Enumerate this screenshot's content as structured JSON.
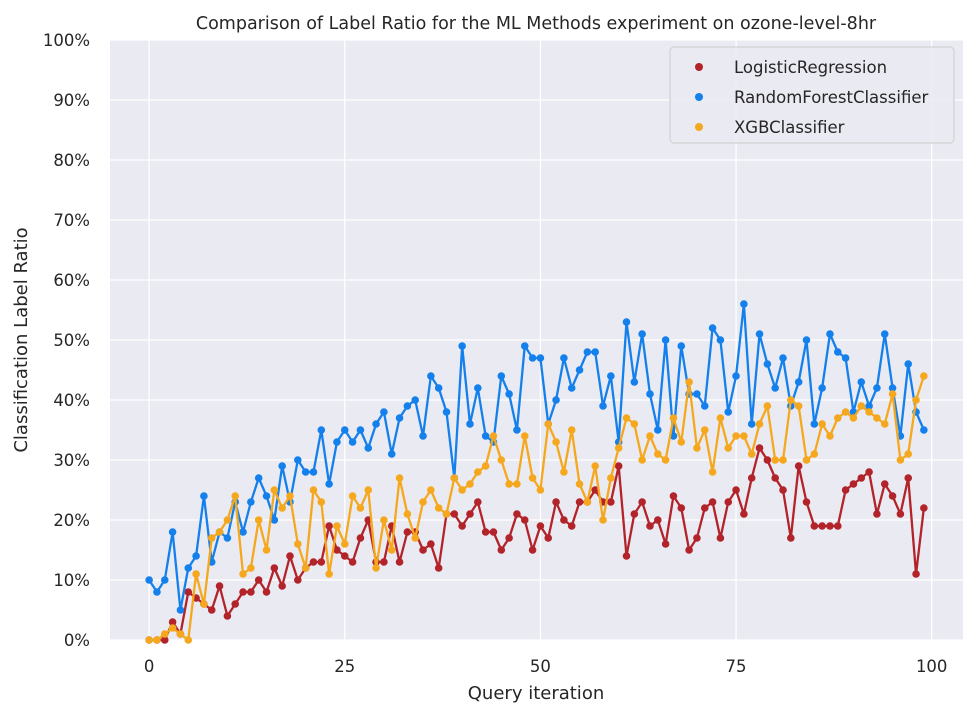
{
  "chart_data": {
    "type": "line",
    "title": "Comparison of Label Ratio for the ML Methods experiment on ozone-level-8hr",
    "xlabel": "Query iteration",
    "ylabel": "Classification Label Ratio",
    "xlim": [
      -5,
      104
    ],
    "ylim": [
      0,
      1
    ],
    "xticks": [
      0,
      25,
      50,
      75,
      100
    ],
    "xtick_labels": [
      "0",
      "25",
      "50",
      "75",
      "100"
    ],
    "yticks": [
      0,
      0.1,
      0.2,
      0.3,
      0.4,
      0.5,
      0.6,
      0.7,
      0.8,
      0.9,
      1.0
    ],
    "ytick_labels": [
      "0%",
      "10%",
      "20%",
      "30%",
      "40%",
      "50%",
      "60%",
      "70%",
      "80%",
      "90%",
      "100%"
    ],
    "grid": true,
    "background": "#eaeaf2",
    "legend_position": "top-right",
    "series": [
      {
        "name": "LogisticRegression",
        "color": "#b2232a",
        "values": [
          0,
          0,
          0,
          0.03,
          0.01,
          0.08,
          0.07,
          0.06,
          0.05,
          0.09,
          0.04,
          0.06,
          0.08,
          0.08,
          0.1,
          0.08,
          0.12,
          0.09,
          0.14,
          0.1,
          0.12,
          0.13,
          0.13,
          0.19,
          0.15,
          0.14,
          0.13,
          0.17,
          0.2,
          0.13,
          0.13,
          0.19,
          0.13,
          0.18,
          0.18,
          0.15,
          0.16,
          0.12,
          0.21,
          0.21,
          0.19,
          0.21,
          0.23,
          0.18,
          0.18,
          0.15,
          0.17,
          0.21,
          0.2,
          0.15,
          0.19,
          0.17,
          0.23,
          0.2,
          0.19,
          0.23,
          0.23,
          0.25,
          0.23,
          0.23,
          0.29,
          0.14,
          0.21,
          0.23,
          0.19,
          0.2,
          0.16,
          0.24,
          0.22,
          0.15,
          0.17,
          0.22,
          0.23,
          0.17,
          0.23,
          0.25,
          0.21,
          0.27,
          0.32,
          0.3,
          0.27,
          0.25,
          0.17,
          0.29,
          0.23,
          0.19,
          0.19,
          0.19,
          0.19,
          0.25,
          0.26,
          0.27,
          0.28,
          0.21,
          0.26,
          0.24,
          0.21,
          0.27,
          0.11,
          0.22
        ]
      },
      {
        "name": "RandomForestClassifier",
        "color": "#1480ec",
        "values": [
          0.1,
          0.08,
          0.1,
          0.18,
          0.05,
          0.12,
          0.14,
          0.24,
          0.13,
          0.18,
          0.17,
          0.23,
          0.18,
          0.23,
          0.27,
          0.24,
          0.2,
          0.29,
          0.23,
          0.3,
          0.28,
          0.28,
          0.35,
          0.26,
          0.33,
          0.35,
          0.33,
          0.35,
          0.32,
          0.36,
          0.38,
          0.31,
          0.37,
          0.39,
          0.4,
          0.34,
          0.44,
          0.42,
          0.38,
          0.27,
          0.49,
          0.36,
          0.42,
          0.34,
          0.33,
          0.44,
          0.41,
          0.35,
          0.49,
          0.47,
          0.47,
          0.36,
          0.4,
          0.47,
          0.42,
          0.45,
          0.48,
          0.48,
          0.39,
          0.44,
          0.33,
          0.53,
          0.43,
          0.51,
          0.41,
          0.35,
          0.5,
          0.34,
          0.49,
          0.41,
          0.41,
          0.39,
          0.52,
          0.5,
          0.38,
          0.44,
          0.56,
          0.36,
          0.51,
          0.46,
          0.42,
          0.47,
          0.39,
          0.43,
          0.5,
          0.36,
          0.42,
          0.51,
          0.48,
          0.47,
          0.38,
          0.43,
          0.39,
          0.42,
          0.51,
          0.42,
          0.34,
          0.46,
          0.38,
          0.35
        ]
      },
      {
        "name": "XGBClassifier",
        "color": "#f5a81d",
        "values": [
          0,
          0,
          0.01,
          0.02,
          0.01,
          0,
          0.11,
          0.06,
          0.17,
          0.18,
          0.2,
          0.24,
          0.11,
          0.12,
          0.2,
          0.15,
          0.25,
          0.22,
          0.24,
          0.16,
          0.12,
          0.25,
          0.23,
          0.11,
          0.19,
          0.16,
          0.24,
          0.22,
          0.25,
          0.12,
          0.2,
          0.15,
          0.27,
          0.21,
          0.17,
          0.23,
          0.25,
          0.22,
          0.21,
          0.27,
          0.25,
          0.26,
          0.28,
          0.29,
          0.34,
          0.3,
          0.26,
          0.26,
          0.34,
          0.27,
          0.25,
          0.36,
          0.33,
          0.28,
          0.35,
          0.26,
          0.23,
          0.29,
          0.2,
          0.27,
          0.32,
          0.37,
          0.36,
          0.3,
          0.34,
          0.31,
          0.3,
          0.37,
          0.33,
          0.43,
          0.32,
          0.35,
          0.28,
          0.37,
          0.32,
          0.34,
          0.34,
          0.31,
          0.36,
          0.39,
          0.3,
          0.3,
          0.4,
          0.39,
          0.3,
          0.31,
          0.36,
          0.34,
          0.37,
          0.38,
          0.37,
          0.39,
          0.38,
          0.37,
          0.36,
          0.41,
          0.3,
          0.31,
          0.4,
          0.44
        ]
      }
    ]
  }
}
